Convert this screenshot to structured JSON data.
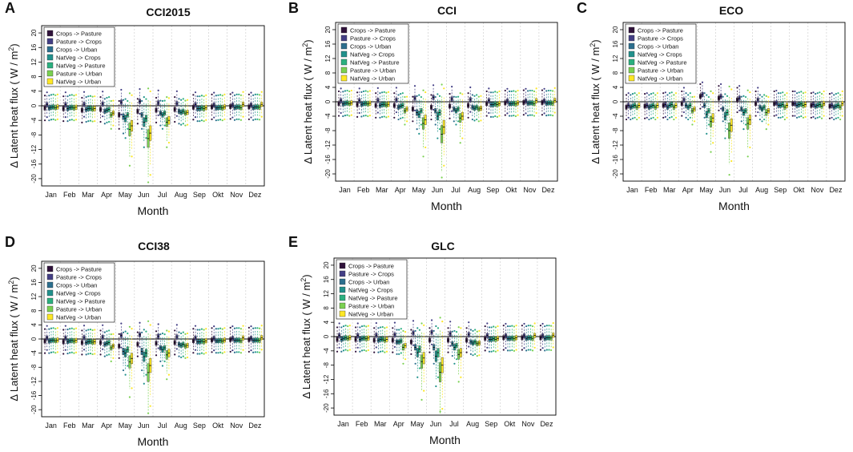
{
  "figure": {
    "months": [
      "Jan",
      "Feb",
      "Mar",
      "Apr",
      "May",
      "Jun",
      "Jul",
      "Aug",
      "Sep",
      "Okt",
      "Nov",
      "Dez"
    ],
    "xlabel": "Month",
    "ylabel_text": "Δ Latent heat flux",
    "ylabel_unit": "( W / m",
    "ylabel_sup": "2",
    "ylabel_close": ")",
    "yticks": [
      20,
      16,
      12,
      8,
      4,
      0,
      -4,
      -8,
      -12,
      -16,
      -20
    ],
    "ylim": [
      -22,
      22
    ],
    "legend_entries": [
      "Crops -> Pasture",
      "Pasture -> Crops",
      "Crops -> Urban",
      "NatVeg -> Crops",
      "NatVeg -> Pasture",
      "Pasture -> Urban",
      "NatVeg -> Urban"
    ],
    "series_colors": [
      "#30123b",
      "#433e85",
      "#2c6f8e",
      "#21918c",
      "#2bb07f",
      "#7ad151",
      "#fde725"
    ]
  },
  "panels": [
    {
      "letter": "A",
      "title": "CCI2015"
    },
    {
      "letter": "B",
      "title": "CCI"
    },
    {
      "letter": "C",
      "title": "ECO"
    },
    {
      "letter": "D",
      "title": "CCI38"
    },
    {
      "letter": "E",
      "title": "GLC"
    }
  ],
  "chart_data": [
    {
      "type": "box",
      "title": "CCI2015",
      "xlabel": "Month",
      "ylabel": "Δ Latent heat flux (W/m2)",
      "ylim": [
        -22,
        22
      ],
      "categories": [
        "Jan",
        "Feb",
        "Mar",
        "Apr",
        "May",
        "Jun",
        "Jul",
        "Aug",
        "Sep",
        "Okt",
        "Nov",
        "Dez"
      ],
      "series": [
        {
          "name": "Crops -> Pasture",
          "values": [
            -0.6,
            -0.8,
            -1.2,
            -1.0,
            -2.5,
            -1.5,
            -1.2,
            -1.0,
            -0.4,
            -0.3,
            -0.2,
            -0.3
          ]
        },
        {
          "name": "Pasture -> Crops",
          "values": [
            0.3,
            0.3,
            0.4,
            0.5,
            1.0,
            1.2,
            0.8,
            0.6,
            0.3,
            0.2,
            0.2,
            0.2
          ]
        },
        {
          "name": "Crops -> Urban",
          "values": [
            -0.6,
            -0.8,
            -1.0,
            -1.5,
            -3.0,
            -2.5,
            -2.0,
            -1.5,
            -0.8,
            -0.6,
            -0.5,
            -0.5
          ]
        },
        {
          "name": "NatVeg -> Crops",
          "values": [
            -0.4,
            -0.5,
            -0.8,
            -1.2,
            -3.5,
            -4.5,
            -2.5,
            -1.8,
            -0.8,
            -0.5,
            -0.3,
            -0.3
          ]
        },
        {
          "name": "NatVeg -> Pasture",
          "values": [
            -0.3,
            -0.4,
            -0.7,
            -1.0,
            -2.5,
            -3.5,
            -2.0,
            -1.5,
            -0.6,
            -0.4,
            -0.3,
            -0.3
          ]
        },
        {
          "name": "Pasture -> Urban",
          "values": [
            -0.5,
            -0.6,
            -0.9,
            -2.5,
            -6.5,
            -9.0,
            -4.5,
            -2.0,
            -0.8,
            -0.6,
            -0.5,
            -0.4
          ]
        },
        {
          "name": "NatVeg -> Urban",
          "values": [
            -0.3,
            -0.4,
            -0.8,
            -2.0,
            -5.5,
            -7.5,
            -4.0,
            -1.8,
            -0.5,
            -0.3,
            0.4,
            0.4
          ]
        }
      ]
    },
    {
      "type": "box",
      "title": "CCI",
      "xlabel": "Month",
      "ylabel": "Δ Latent heat flux (W/m2)",
      "ylim": [
        -22,
        22
      ],
      "categories": [
        "Jan",
        "Feb",
        "Mar",
        "Apr",
        "May",
        "Jun",
        "Jul",
        "Aug",
        "Sep",
        "Okt",
        "Nov",
        "Dez"
      ],
      "series": [
        {
          "name": "Crops -> Pasture",
          "values": [
            -0.5,
            -0.8,
            -1.0,
            -1.0,
            -2.0,
            -1.5,
            -1.2,
            -1.0,
            -0.5,
            -0.3,
            -0.2,
            -0.2
          ]
        },
        {
          "name": "Pasture -> Crops",
          "values": [
            0.3,
            0.3,
            0.4,
            0.5,
            1.0,
            1.2,
            0.8,
            0.6,
            0.3,
            0.2,
            0.2,
            0.2
          ]
        },
        {
          "name": "Crops -> Urban",
          "values": [
            -0.6,
            -0.7,
            -1.0,
            -1.5,
            -3.0,
            -2.5,
            -2.0,
            -1.5,
            -0.8,
            -0.5,
            -0.4,
            -0.4
          ]
        },
        {
          "name": "NatVeg -> Crops",
          "values": [
            -0.4,
            -0.5,
            -0.8,
            -1.2,
            -3.5,
            -4.0,
            -2.5,
            -1.8,
            -0.8,
            -0.5,
            -0.3,
            -0.3
          ]
        },
        {
          "name": "NatVeg -> Pasture",
          "values": [
            -0.3,
            -0.4,
            -0.7,
            -1.0,
            -2.5,
            -3.0,
            -2.0,
            -1.5,
            -0.6,
            -0.4,
            -0.3,
            -0.3
          ]
        },
        {
          "name": "Pasture -> Urban",
          "values": [
            -0.5,
            -0.6,
            -0.9,
            -2.5,
            -6.0,
            -9.0,
            -4.5,
            -2.0,
            -0.8,
            -0.6,
            -0.5,
            -0.4
          ]
        },
        {
          "name": "NatVeg -> Urban",
          "values": [
            -0.3,
            -0.4,
            -0.7,
            -2.0,
            -5.0,
            -7.0,
            -4.0,
            -1.8,
            -0.5,
            -0.3,
            0.3,
            0.4
          ]
        }
      ]
    },
    {
      "type": "box",
      "title": "ECO",
      "xlabel": "Month",
      "ylabel": "Δ Latent heat flux (W/m2)",
      "ylim": [
        -22,
        22
      ],
      "categories": [
        "Jan",
        "Feb",
        "Mar",
        "Apr",
        "May",
        "Jun",
        "Jul",
        "Aug",
        "Sep",
        "Okt",
        "Nov",
        "Dez"
      ],
      "series": [
        {
          "name": "Crops -> Pasture",
          "values": [
            -1.5,
            -1.2,
            -1.0,
            -0.5,
            1.5,
            1.0,
            0.5,
            -0.5,
            -0.5,
            -0.5,
            -1.0,
            -1.2
          ]
        },
        {
          "name": "Pasture -> Crops",
          "values": [
            -1.0,
            -1.0,
            -0.8,
            0.5,
            2.0,
            1.5,
            1.0,
            0.5,
            -0.3,
            -0.5,
            -0.8,
            -1.0
          ]
        },
        {
          "name": "Crops -> Urban",
          "values": [
            -1.5,
            -1.5,
            -1.5,
            -1.0,
            -1.0,
            -2.0,
            -2.0,
            -1.5,
            -1.0,
            -1.0,
            -1.2,
            -1.5
          ]
        },
        {
          "name": "NatVeg -> Crops",
          "values": [
            -1.2,
            -1.2,
            -1.0,
            -1.5,
            -3.5,
            -4.0,
            -3.0,
            -2.0,
            -1.0,
            -0.8,
            -1.0,
            -1.2
          ]
        },
        {
          "name": "NatVeg -> Pasture",
          "values": [
            -1.0,
            -1.0,
            -0.8,
            -1.0,
            -2.5,
            -3.0,
            -2.5,
            -1.5,
            -0.8,
            -0.6,
            -0.8,
            -1.0
          ]
        },
        {
          "name": "Pasture -> Urban",
          "values": [
            -1.5,
            -1.5,
            -1.5,
            -2.5,
            -5.5,
            -8.0,
            -6.0,
            -3.0,
            -1.5,
            -1.0,
            -1.2,
            -1.5
          ]
        },
        {
          "name": "NatVeg -> Urban",
          "values": [
            -1.0,
            -1.0,
            -1.0,
            -2.0,
            -4.5,
            -6.5,
            -5.0,
            -2.5,
            -1.0,
            -0.8,
            -0.5,
            -0.5
          ]
        }
      ]
    },
    {
      "type": "box",
      "title": "CCI38",
      "xlabel": "Month",
      "ylabel": "Δ Latent heat flux (W/m2)",
      "ylim": [
        -22,
        22
      ],
      "categories": [
        "Jan",
        "Feb",
        "Mar",
        "Apr",
        "May",
        "Jun",
        "Jul",
        "Aug",
        "Sep",
        "Okt",
        "Nov",
        "Dez"
      ],
      "series": [
        {
          "name": "Crops -> Pasture",
          "values": [
            -0.6,
            -0.8,
            -1.0,
            -1.0,
            -2.0,
            -1.5,
            -1.2,
            -1.0,
            -0.5,
            -0.3,
            -0.2,
            -0.2
          ]
        },
        {
          "name": "Pasture -> Crops",
          "values": [
            0.3,
            0.3,
            0.4,
            0.5,
            1.0,
            1.2,
            0.8,
            0.6,
            0.3,
            0.2,
            0.2,
            0.2
          ]
        },
        {
          "name": "Crops -> Urban",
          "values": [
            -0.6,
            -0.7,
            -1.0,
            -1.5,
            -3.5,
            -3.5,
            -2.5,
            -1.5,
            -0.8,
            -0.5,
            -0.4,
            -0.4
          ]
        },
        {
          "name": "NatVeg -> Crops",
          "values": [
            -0.4,
            -0.5,
            -0.8,
            -1.2,
            -4.0,
            -5.0,
            -3.0,
            -1.8,
            -0.8,
            -0.5,
            -0.3,
            -0.3
          ]
        },
        {
          "name": "NatVeg -> Pasture",
          "values": [
            -0.3,
            -0.4,
            -0.7,
            -1.0,
            -3.0,
            -4.0,
            -2.5,
            -1.5,
            -0.6,
            -0.4,
            -0.3,
            -0.3
          ]
        },
        {
          "name": "Pasture -> Urban",
          "values": [
            -0.5,
            -0.6,
            -0.9,
            -2.5,
            -6.5,
            -9.5,
            -4.5,
            -2.0,
            -0.8,
            -0.6,
            -0.5,
            -0.4
          ]
        },
        {
          "name": "NatVeg -> Urban",
          "values": [
            -0.3,
            -0.4,
            -0.8,
            -2.0,
            -5.5,
            -7.5,
            -4.0,
            -1.8,
            -0.5,
            -0.3,
            0.3,
            0.4
          ]
        }
      ]
    },
    {
      "type": "box",
      "title": "GLC",
      "xlabel": "Month",
      "ylabel": "Δ Latent heat flux (W/m2)",
      "ylim": [
        -22,
        22
      ],
      "categories": [
        "Jan",
        "Feb",
        "Mar",
        "Apr",
        "May",
        "Jun",
        "Jul",
        "Aug",
        "Sep",
        "Okt",
        "Nov",
        "Dez"
      ],
      "series": [
        {
          "name": "Crops -> Pasture",
          "values": [
            -0.8,
            -0.8,
            -1.0,
            -1.0,
            -1.5,
            -1.0,
            -1.0,
            -1.0,
            -0.5,
            -0.3,
            -0.3,
            -0.3
          ]
        },
        {
          "name": "Pasture -> Crops",
          "values": [
            0.3,
            0.3,
            0.4,
            0.5,
            1.0,
            1.2,
            0.8,
            0.6,
            0.3,
            0.2,
            0.2,
            0.2
          ]
        },
        {
          "name": "Crops -> Urban",
          "values": [
            -0.8,
            -0.8,
            -1.0,
            -1.5,
            -3.0,
            -3.0,
            -2.0,
            -1.5,
            -0.8,
            -0.5,
            -0.5,
            -0.5
          ]
        },
        {
          "name": "NatVeg -> Crops",
          "values": [
            -0.5,
            -0.5,
            -0.8,
            -1.5,
            -4.5,
            -5.5,
            -3.0,
            -1.8,
            -0.8,
            -0.5,
            -0.3,
            -0.3
          ]
        },
        {
          "name": "NatVeg -> Pasture",
          "values": [
            -0.3,
            -0.4,
            -0.7,
            -1.2,
            -3.5,
            -4.5,
            -2.5,
            -1.5,
            -0.6,
            -0.4,
            -0.3,
            -0.3
          ]
        },
        {
          "name": "Pasture -> Urban",
          "values": [
            -0.5,
            -0.6,
            -1.0,
            -3.0,
            -7.0,
            -10.0,
            -5.0,
            -2.0,
            -0.8,
            -0.6,
            -0.5,
            -0.4
          ]
        },
        {
          "name": "NatVeg -> Urban",
          "values": [
            -0.3,
            -0.4,
            -0.8,
            -2.5,
            -6.0,
            -8.0,
            -4.5,
            -1.8,
            -0.5,
            -0.3,
            0.3,
            0.4
          ]
        }
      ]
    }
  ]
}
